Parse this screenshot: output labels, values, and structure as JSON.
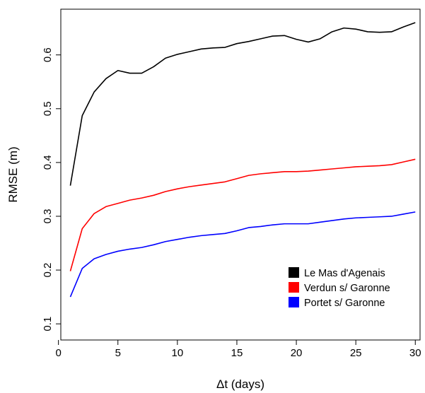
{
  "chart_data": {
    "type": "line",
    "title": "",
    "xlabel": "Δt (days)",
    "ylabel": "RMSE (m)",
    "xlim": [
      0,
      30
    ],
    "ylim": [
      0.07,
      0.685
    ],
    "xticks": [
      0,
      5,
      10,
      15,
      20,
      25,
      30
    ],
    "xtick_labels": [
      "0",
      "5",
      "10",
      "15",
      "20",
      "25",
      "30"
    ],
    "yticks": [
      0.1,
      0.2,
      0.3,
      0.4,
      0.5,
      0.6
    ],
    "ytick_labels": [
      "0.1",
      "0.2",
      "0.3",
      "0.4",
      "0.5",
      "0.6"
    ],
    "grid": false,
    "legend_position": "bottom-right",
    "x": [
      1,
      2,
      3,
      4,
      5,
      6,
      7,
      8,
      9,
      10,
      11,
      12,
      13,
      14,
      15,
      16,
      17,
      18,
      19,
      20,
      21,
      22,
      23,
      24,
      25,
      26,
      27,
      28,
      29,
      30
    ],
    "series": [
      {
        "name": "Le Mas d'Agenais",
        "color": "#000000",
        "values": [
          0.357,
          0.487,
          0.531,
          0.556,
          0.571,
          0.566,
          0.566,
          0.578,
          0.594,
          0.601,
          0.606,
          0.611,
          0.613,
          0.614,
          0.621,
          0.625,
          0.63,
          0.635,
          0.636,
          0.629,
          0.624,
          0.63,
          0.643,
          0.65,
          0.648,
          0.643,
          0.642,
          0.643,
          0.652,
          0.66
        ]
      },
      {
        "name": "Verdun s/ Garonne",
        "color": "#ff0000",
        "values": [
          0.198,
          0.277,
          0.305,
          0.318,
          0.324,
          0.33,
          0.334,
          0.339,
          0.346,
          0.351,
          0.355,
          0.358,
          0.361,
          0.364,
          0.37,
          0.376,
          0.379,
          0.381,
          0.383,
          0.383,
          0.384,
          0.386,
          0.388,
          0.39,
          0.392,
          0.393,
          0.394,
          0.396,
          0.401,
          0.406
        ]
      },
      {
        "name": "Portet s/ Garonne",
        "color": "#0000ff",
        "values": [
          0.15,
          0.203,
          0.221,
          0.229,
          0.235,
          0.239,
          0.242,
          0.247,
          0.253,
          0.257,
          0.261,
          0.264,
          0.266,
          0.268,
          0.273,
          0.279,
          0.281,
          0.284,
          0.286,
          0.286,
          0.286,
          0.289,
          0.292,
          0.295,
          0.297,
          0.298,
          0.299,
          0.3,
          0.304,
          0.308
        ]
      }
    ]
  }
}
